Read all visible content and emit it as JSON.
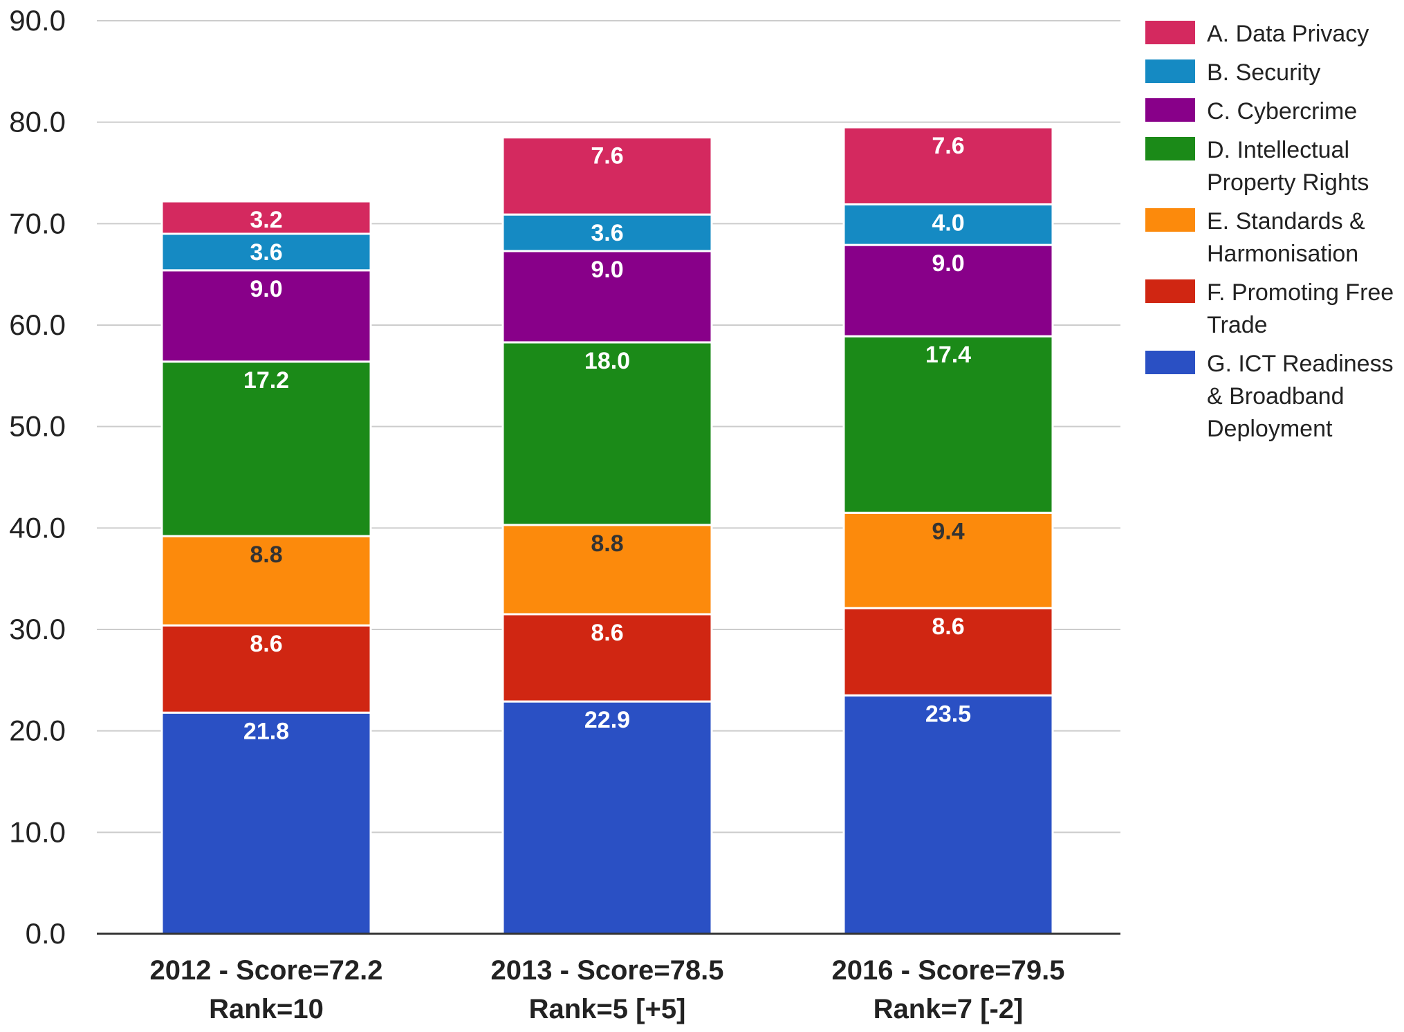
{
  "chart_data": {
    "type": "bar",
    "stacked": true,
    "categories": [
      [
        "2012 - Score=72.2",
        "Rank=10"
      ],
      [
        "2013 - Score=78.5",
        "Rank=5 [+5]"
      ],
      [
        "2016 - Score=79.5",
        "Rank=7 [-2]"
      ]
    ],
    "ylim": [
      0,
      90
    ],
    "yticks": [
      "0.0",
      "10.0",
      "20.0",
      "30.0",
      "40.0",
      "50.0",
      "60.0",
      "70.0",
      "80.0",
      "90.0"
    ],
    "grid": true,
    "legend_position": "right",
    "series": [
      {
        "name": "G. ICT Readiness & Broadband Deployment",
        "legend_lines": [
          "G. ICT Readiness",
          "& Broadband",
          "Deployment"
        ],
        "color": "#2a50c4",
        "label_color": "#ffffff",
        "values": [
          21.8,
          22.9,
          23.5
        ],
        "labels": [
          "21.8",
          "22.9",
          "23.5"
        ]
      },
      {
        "name": "F. Promoting Free Trade",
        "legend_lines": [
          "F. Promoting Free",
          "Trade"
        ],
        "color": "#d02612",
        "label_color": "#ffffff",
        "values": [
          8.6,
          8.6,
          8.6
        ],
        "labels": [
          "8.6",
          "8.6",
          "8.6"
        ]
      },
      {
        "name": "E. Standards & Harmonisation",
        "legend_lines": [
          "E. Standards &",
          "Harmonisation"
        ],
        "color": "#fc8a0c",
        "label_color": "#333333",
        "values": [
          8.8,
          8.8,
          9.4
        ],
        "labels": [
          "8.8",
          "8.8",
          "9.4"
        ]
      },
      {
        "name": "D. Intellectual Property Rights",
        "legend_lines": [
          "D. Intellectual",
          "Property Rights"
        ],
        "color": "#1b8a18",
        "label_color": "#ffffff",
        "values": [
          17.2,
          18.0,
          17.4
        ],
        "labels": [
          "17.2",
          "18.0",
          "17.4"
        ]
      },
      {
        "name": "C. Cybercrime",
        "legend_lines": [
          "C. Cybercrime"
        ],
        "color": "#880089",
        "label_color": "#ffffff",
        "values": [
          9.0,
          9.0,
          9.0
        ],
        "labels": [
          "9.0",
          "9.0",
          "9.0"
        ]
      },
      {
        "name": "B. Security",
        "legend_lines": [
          "B. Security"
        ],
        "color": "#158ac3",
        "label_color": "#ffffff",
        "values": [
          3.6,
          3.6,
          4.0
        ],
        "labels": [
          "3.6",
          "3.6",
          "4.0"
        ]
      },
      {
        "name": "A. Data Privacy",
        "legend_lines": [
          "A. Data Privacy"
        ],
        "color": "#d4295f",
        "label_color": "#ffffff",
        "values": [
          3.2,
          7.6,
          7.6
        ],
        "labels": [
          "3.2",
          "7.6",
          "7.6"
        ]
      }
    ],
    "legend_order": [
      "A. Data Privacy",
      "B. Security",
      "C. Cybercrime",
      "D. Intellectual Property Rights",
      "E. Standards & Harmonisation",
      "F. Promoting Free Trade",
      "G. ICT Readiness & Broadband Deployment"
    ]
  }
}
